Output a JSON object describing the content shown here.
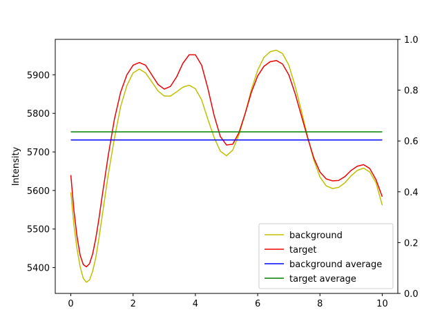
{
  "chart_data": {
    "type": "line",
    "title": "",
    "xlabel": "",
    "ylabel": "Intensity",
    "xlim": [
      -0.5,
      10.5
    ],
    "ylim": [
      5333,
      5992
    ],
    "y2lim": [
      0.0,
      1.0
    ],
    "x_ticks": [
      0,
      2,
      4,
      6,
      8,
      10
    ],
    "y_ticks": [
      5400,
      5500,
      5600,
      5700,
      5800,
      5900
    ],
    "y2_ticks": [
      0.0,
      0.2,
      0.4,
      0.6,
      0.8,
      1.0
    ],
    "grid": false,
    "legend_position": "lower-right",
    "series": [
      {
        "name": "background",
        "color": "#bfbf00",
        "points": [
          [
            0,
            5595
          ],
          [
            0.1,
            5510
          ],
          [
            0.2,
            5448
          ],
          [
            0.3,
            5402
          ],
          [
            0.4,
            5372
          ],
          [
            0.5,
            5362
          ],
          [
            0.6,
            5368
          ],
          [
            0.7,
            5390
          ],
          [
            0.8,
            5425
          ],
          [
            0.9,
            5475
          ],
          [
            1.0,
            5530
          ],
          [
            1.2,
            5640
          ],
          [
            1.4,
            5735
          ],
          [
            1.6,
            5818
          ],
          [
            1.8,
            5872
          ],
          [
            2.0,
            5905
          ],
          [
            2.2,
            5915
          ],
          [
            2.4,
            5905
          ],
          [
            2.6,
            5882
          ],
          [
            2.8,
            5858
          ],
          [
            3.0,
            5845
          ],
          [
            3.2,
            5845
          ],
          [
            3.4,
            5856
          ],
          [
            3.6,
            5868
          ],
          [
            3.8,
            5873
          ],
          [
            4.0,
            5864
          ],
          [
            4.2,
            5835
          ],
          [
            4.4,
            5785
          ],
          [
            4.6,
            5738
          ],
          [
            4.8,
            5702
          ],
          [
            5.0,
            5690
          ],
          [
            5.2,
            5705
          ],
          [
            5.4,
            5745
          ],
          [
            5.6,
            5800
          ],
          [
            5.8,
            5862
          ],
          [
            6.0,
            5912
          ],
          [
            6.2,
            5945
          ],
          [
            6.4,
            5960
          ],
          [
            6.6,
            5964
          ],
          [
            6.8,
            5955
          ],
          [
            7.0,
            5925
          ],
          [
            7.2,
            5872
          ],
          [
            7.4,
            5808
          ],
          [
            7.6,
            5740
          ],
          [
            7.8,
            5680
          ],
          [
            8.0,
            5635
          ],
          [
            8.2,
            5612
          ],
          [
            8.4,
            5605
          ],
          [
            8.6,
            5608
          ],
          [
            8.8,
            5620
          ],
          [
            9.0,
            5638
          ],
          [
            9.2,
            5652
          ],
          [
            9.4,
            5658
          ],
          [
            9.6,
            5648
          ],
          [
            9.8,
            5620
          ],
          [
            10.0,
            5562
          ]
        ]
      },
      {
        "name": "target",
        "color": "#ee0000",
        "points": [
          [
            0,
            5640
          ],
          [
            0.1,
            5548
          ],
          [
            0.2,
            5480
          ],
          [
            0.3,
            5432
          ],
          [
            0.4,
            5408
          ],
          [
            0.5,
            5402
          ],
          [
            0.6,
            5410
          ],
          [
            0.7,
            5435
          ],
          [
            0.8,
            5475
          ],
          [
            0.9,
            5525
          ],
          [
            1.0,
            5582
          ],
          [
            1.2,
            5690
          ],
          [
            1.4,
            5785
          ],
          [
            1.6,
            5855
          ],
          [
            1.8,
            5900
          ],
          [
            2.0,
            5925
          ],
          [
            2.2,
            5932
          ],
          [
            2.4,
            5925
          ],
          [
            2.6,
            5900
          ],
          [
            2.8,
            5875
          ],
          [
            3.0,
            5863
          ],
          [
            3.2,
            5870
          ],
          [
            3.4,
            5895
          ],
          [
            3.6,
            5930
          ],
          [
            3.8,
            5952
          ],
          [
            4.0,
            5952
          ],
          [
            4.2,
            5925
          ],
          [
            4.4,
            5865
          ],
          [
            4.6,
            5795
          ],
          [
            4.8,
            5740
          ],
          [
            5.0,
            5718
          ],
          [
            5.2,
            5720
          ],
          [
            5.4,
            5750
          ],
          [
            5.6,
            5800
          ],
          [
            5.8,
            5855
          ],
          [
            6.0,
            5897
          ],
          [
            6.2,
            5922
          ],
          [
            6.4,
            5934
          ],
          [
            6.6,
            5937
          ],
          [
            6.8,
            5928
          ],
          [
            7.0,
            5900
          ],
          [
            7.2,
            5852
          ],
          [
            7.4,
            5795
          ],
          [
            7.6,
            5738
          ],
          [
            7.8,
            5685
          ],
          [
            8.0,
            5648
          ],
          [
            8.2,
            5630
          ],
          [
            8.4,
            5625
          ],
          [
            8.6,
            5626
          ],
          [
            8.8,
            5636
          ],
          [
            9.0,
            5652
          ],
          [
            9.2,
            5663
          ],
          [
            9.4,
            5667
          ],
          [
            9.6,
            5657
          ],
          [
            9.8,
            5628
          ],
          [
            10.0,
            5584
          ]
        ]
      },
      {
        "name": "background average",
        "color": "#0000ff",
        "points": [
          [
            0,
            5731
          ],
          [
            10,
            5731
          ]
        ]
      },
      {
        "name": "target average",
        "color": "#008000",
        "points": [
          [
            0,
            5752
          ],
          [
            10,
            5752
          ]
        ]
      }
    ]
  }
}
